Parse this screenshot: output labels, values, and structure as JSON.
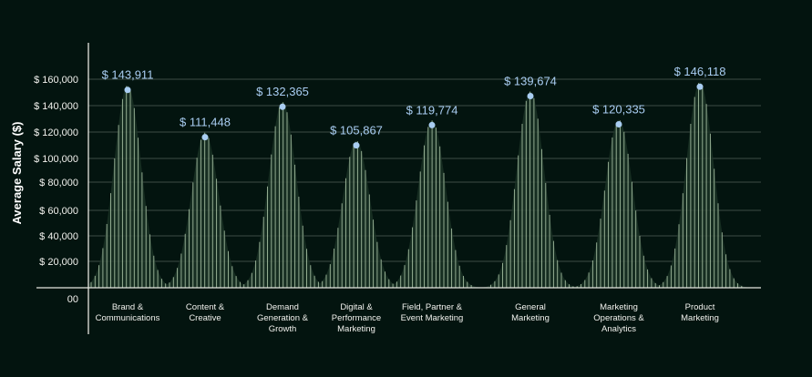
{
  "chart_data": {
    "type": "bar",
    "title": "",
    "xlabel": "",
    "ylabel": "Average Salary ($)",
    "ylim": [
      0,
      160000
    ],
    "grid": true,
    "y_tick_labels": [
      "$ 160,000",
      "$ 140,000",
      "$ 120,000",
      "$ 100,000",
      "$ 80,000",
      "$ 60,000",
      "$ 40,000",
      "$ 20,000",
      "00"
    ],
    "categories": [
      [
        "Brand &",
        "Communications"
      ],
      [
        "Content &",
        "Creative"
      ],
      [
        "Demand",
        "Generation &",
        "Growth"
      ],
      [
        "Digital &",
        "Performance",
        "Marketing"
      ],
      [
        "Field, Partner &",
        "Event Marketing"
      ],
      [
        "General",
        "Marketing"
      ],
      [
        "Marketing",
        "Operations &",
        "Analytics"
      ],
      [
        "Product",
        "Marketing"
      ]
    ],
    "values": [
      143911,
      111448,
      132365,
      105867,
      119774,
      139674,
      120335,
      146118
    ],
    "value_labels": [
      "$ 143,911",
      "$ 111,448",
      "$ 132,365",
      "$ 105,867",
      "$ 119,774",
      "$ 139,674",
      "$ 120,335",
      "$ 146,118"
    ],
    "colors": {
      "background": "#03140f",
      "lines": "#b9d3b4",
      "fill": "#1c3326",
      "marker": "#a9cdf2",
      "grid": "#3c4c44",
      "axis": "#e6e6e0"
    }
  }
}
